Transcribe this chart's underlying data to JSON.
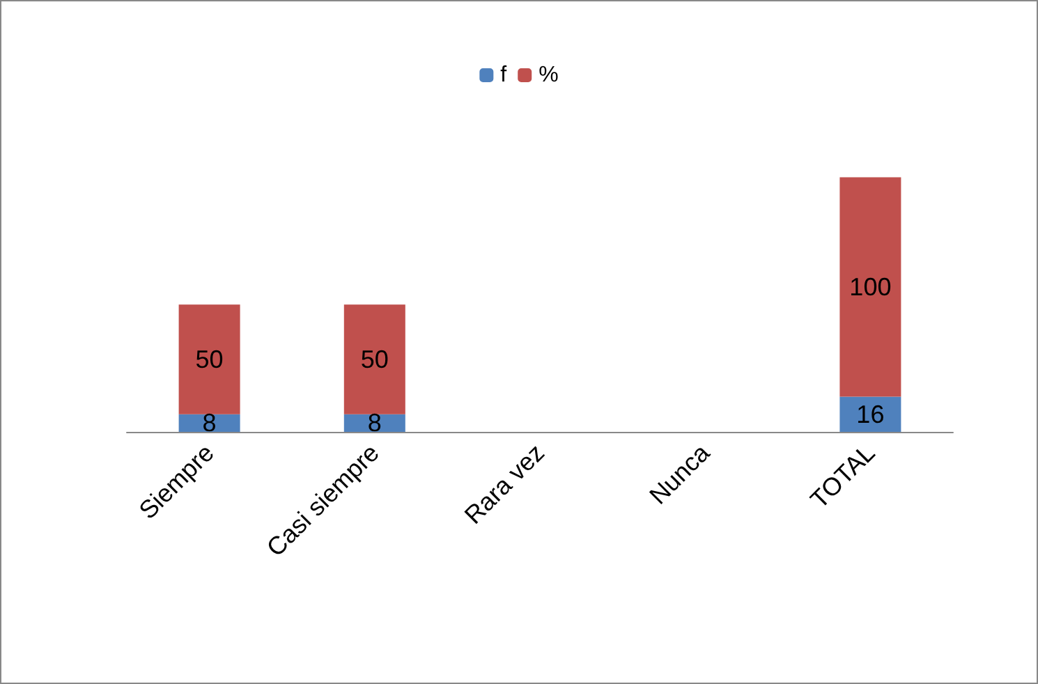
{
  "chart_data": {
    "type": "bar",
    "stacked": true,
    "categories": [
      "Siempre",
      "Casi siempre",
      "Rara vez",
      "Nunca",
      "TOTAL"
    ],
    "series": [
      {
        "name": "f",
        "color": "#4f81bd",
        "values": [
          8,
          8,
          null,
          null,
          16
        ],
        "value_labels": [
          "8",
          "8",
          null,
          null,
          "16"
        ]
      },
      {
        "name": "%",
        "color": "#c0504d",
        "values": [
          50,
          50,
          null,
          null,
          100
        ],
        "value_labels": [
          "50",
          "50",
          null,
          null,
          "100"
        ]
      }
    ],
    "legend": "top",
    "tick_labels": "x"
  }
}
